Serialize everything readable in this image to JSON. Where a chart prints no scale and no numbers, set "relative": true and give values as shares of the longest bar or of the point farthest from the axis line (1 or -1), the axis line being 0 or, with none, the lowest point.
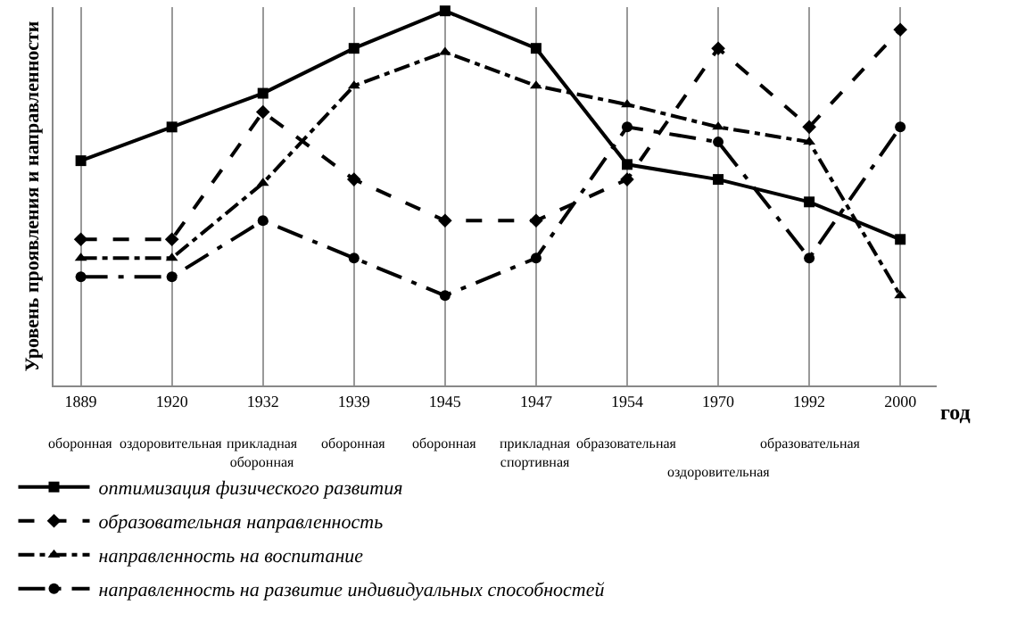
{
  "chart_data": {
    "type": "line",
    "relative": true,
    "xlabel": "год",
    "ylabel": "Уровень проявления и направленности",
    "categories": [
      "1889",
      "1920",
      "1932",
      "1939",
      "1945",
      "1947",
      "1954",
      "1970",
      "1992",
      "2000"
    ],
    "series": [
      {
        "name": "оптимизация физического развития",
        "color": "#000000",
        "marker": "square",
        "line_style": "solid",
        "values": [
          0.6,
          0.69,
          0.78,
          0.9,
          1.0,
          0.9,
          0.59,
          0.55,
          0.49,
          0.39
        ]
      },
      {
        "name": "образовательная направленность",
        "color": "#000000",
        "marker": "diamond",
        "line_style": "dashed",
        "values": [
          0.39,
          0.39,
          0.73,
          0.55,
          0.44,
          0.44,
          0.55,
          0.9,
          0.69,
          0.95
        ]
      },
      {
        "name": "направленность на воспитание",
        "color": "#000000",
        "marker": "triangle",
        "line_style": "dashdot",
        "values": [
          0.34,
          0.34,
          0.54,
          0.8,
          0.89,
          0.8,
          0.75,
          0.69,
          0.65,
          0.24
        ]
      },
      {
        "name": "направленность на развитие индивидуальных способностей",
        "color": "#000000",
        "marker": "circle",
        "line_style": "longdashdot",
        "values": [
          0.29,
          0.29,
          0.44,
          0.34,
          0.24,
          0.34,
          0.69,
          0.65,
          0.34,
          0.69
        ]
      }
    ],
    "annotations": [
      "оборонная",
      "оздоровительная",
      "прикладная\nоборонная",
      "оборонная",
      "оборонная",
      "прикладная\nспортивная",
      "образовательная",
      "оздоровительная",
      "образовательная"
    ],
    "grid": "x",
    "legend": "bottom"
  }
}
